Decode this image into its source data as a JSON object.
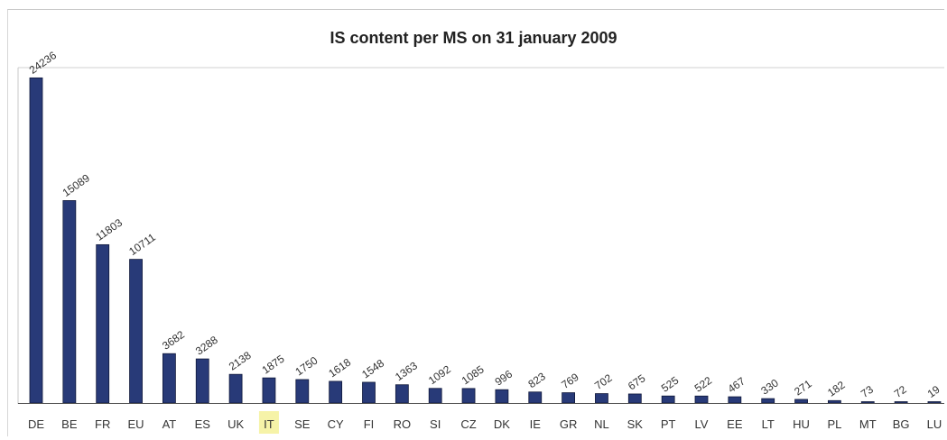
{
  "chart_data": {
    "type": "bar",
    "title": "IS content per MS on 31 january 2009",
    "xlabel": "",
    "ylabel": "",
    "categories": [
      "DE",
      "BE",
      "FR",
      "EU",
      "AT",
      "ES",
      "UK",
      "IT",
      "SE",
      "CY",
      "FI",
      "RO",
      "SI",
      "CZ",
      "DK",
      "IE",
      "GR",
      "NL",
      "SK",
      "PT",
      "LV",
      "EE",
      "LT",
      "HU",
      "PL",
      "MT",
      "BG",
      "LU"
    ],
    "values": [
      24236,
      15089,
      11803,
      10711,
      3682,
      3288,
      2138,
      1875,
      1750,
      1618,
      1548,
      1363,
      1092,
      1085,
      996,
      823,
      769,
      702,
      675,
      525,
      522,
      467,
      330,
      271,
      182,
      73,
      72,
      19
    ],
    "value_labels": [
      "24236",
      "15089",
      "11803",
      "10711",
      "3682",
      "3288",
      "2138",
      "1875",
      "1750",
      "1618",
      "1548",
      "1363",
      "1092",
      "1085",
      "996",
      "823",
      "769",
      "702",
      "675",
      "525",
      "522",
      "467",
      "330",
      "271",
      "182",
      "73",
      "72",
      "19"
    ],
    "ylim": [
      0,
      25000
    ],
    "grid": false,
    "legend": "none",
    "bar_color": "#283a78",
    "highlight_category": "IT",
    "highlight_color": "#f6f3a8"
  }
}
